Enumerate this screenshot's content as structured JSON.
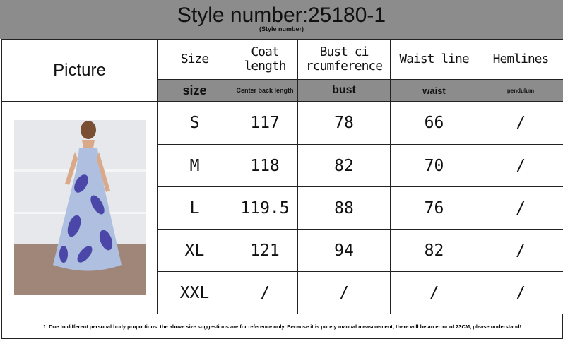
{
  "title": "Style number:25180-1",
  "subtitle": "(Style number)",
  "picture_label": "Picture",
  "headers": [
    "Size",
    "Coat length",
    "Bust ci rcumference",
    "Waist line",
    "Hemlines"
  ],
  "subheaders": [
    "size",
    "Center back length",
    "bust",
    "waist",
    "pendulum"
  ],
  "rows": [
    [
      "S",
      "117",
      "78",
      "66",
      "/"
    ],
    [
      "M",
      "118",
      "82",
      "70",
      "/"
    ],
    [
      "L",
      "119.5",
      "88",
      "76",
      "/"
    ],
    [
      "XL",
      "121",
      "94",
      "82",
      "/"
    ],
    [
      "XXL",
      "/",
      "/",
      "/",
      "/"
    ]
  ],
  "footnote": "1. Due to different personal body proportions, the above size suggestions are for reference only. Because it is purely manual measurement, there will be an error of 23CM, please understand!",
  "image": "dress-photo"
}
